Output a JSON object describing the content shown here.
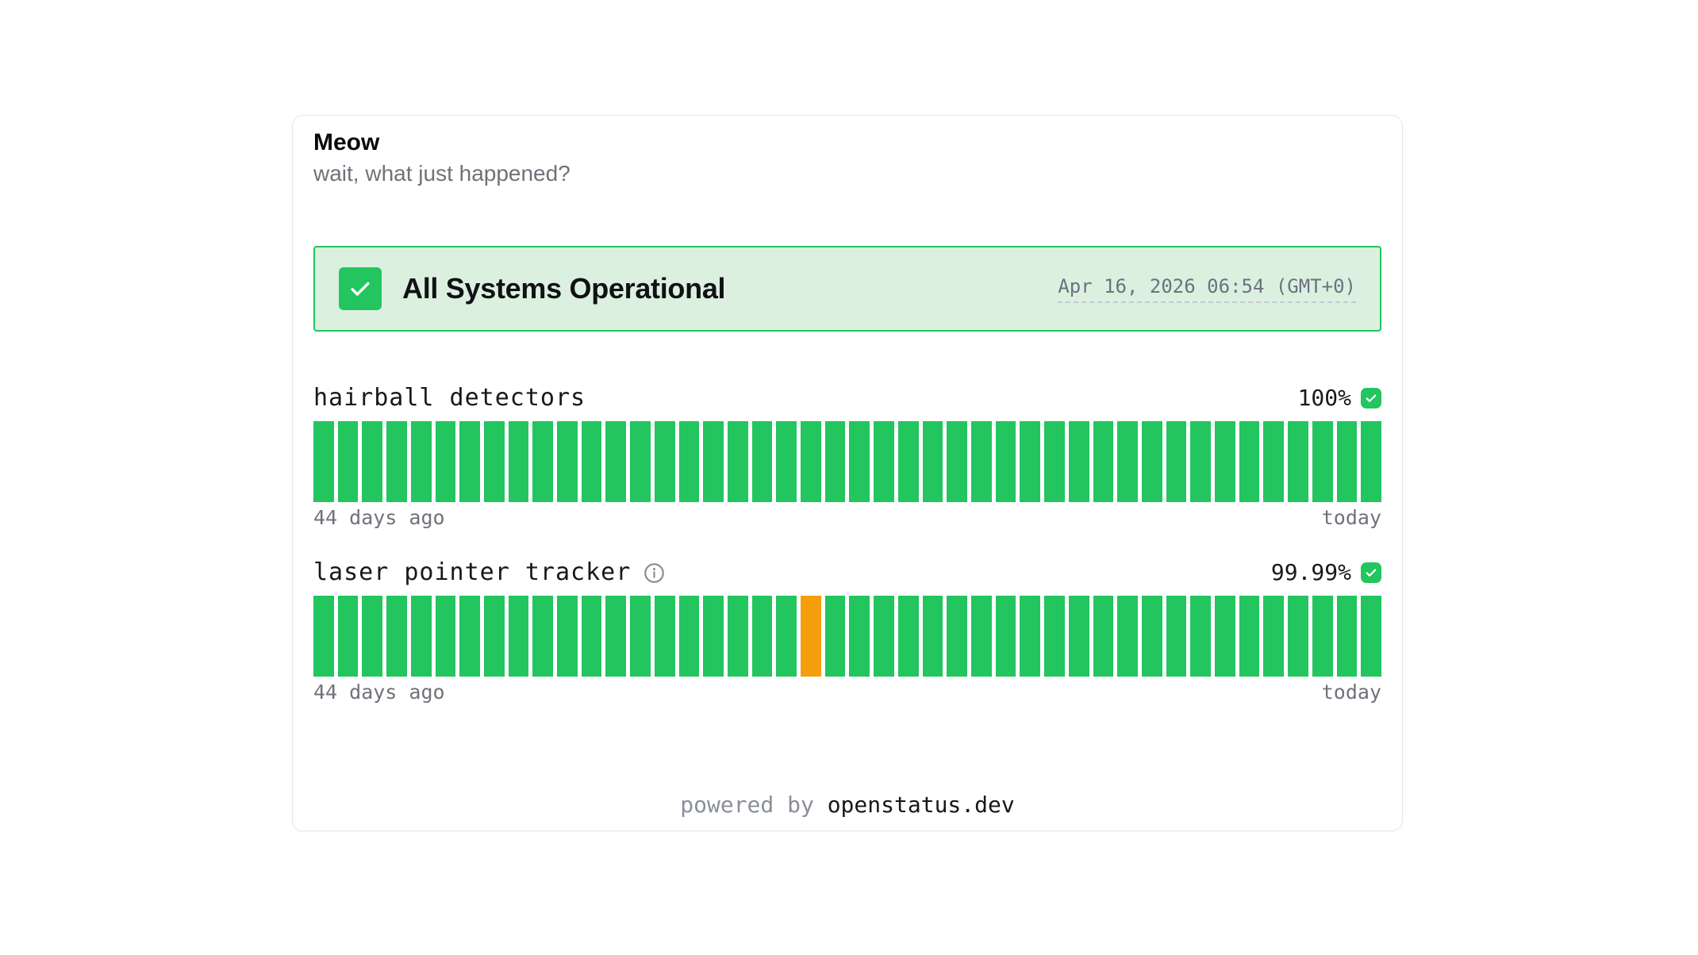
{
  "header": {
    "title": "Meow",
    "subtitle": "wait, what just happened?"
  },
  "status_banner": {
    "label": "All Systems Operational",
    "timestamp": "Apr 16, 2026 06:54 (GMT+0)",
    "icon": "check-icon"
  },
  "monitors": [
    {
      "name": "hairball detectors",
      "has_info_icon": false,
      "uptime": "100%",
      "range_start_label": "44 days ago",
      "range_end_label": "today",
      "bars": {
        "count": 44,
        "default": "operational",
        "exceptions": {}
      }
    },
    {
      "name": "laser pointer tracker",
      "has_info_icon": true,
      "uptime": "99.99%",
      "range_start_label": "44 days ago",
      "range_end_label": "today",
      "bars": {
        "count": 44,
        "default": "operational",
        "exceptions": {
          "20": "degraded"
        }
      }
    }
  ],
  "footer": {
    "prefix": "powered by",
    "brand": "openstatus.dev"
  },
  "colors": {
    "operational": "#22c55e",
    "degraded": "#f59e0b",
    "banner_bg": "#dcf0e0",
    "banner_border": "#22c55e"
  }
}
